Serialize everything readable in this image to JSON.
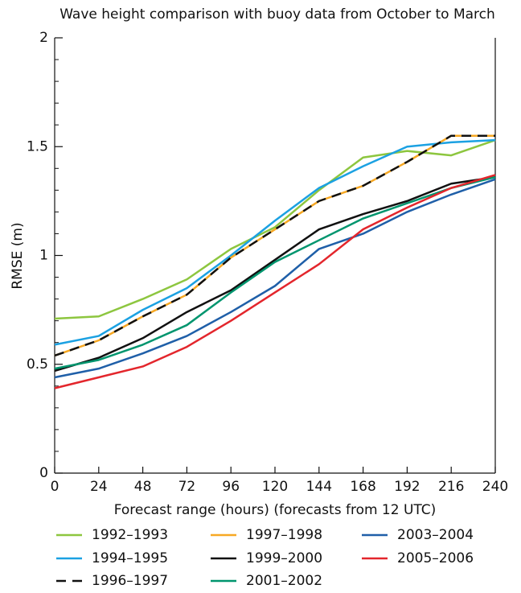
{
  "chart_data": {
    "type": "line",
    "title": "Wave height comparison with buoy data from October to March",
    "x_label": "Forecast range (hours) (forecasts from 12 UTC)",
    "y_label": "RMSE (m)",
    "x": [
      0,
      24,
      48,
      72,
      96,
      120,
      144,
      168,
      192,
      216,
      240
    ],
    "xlim": [
      0,
      240
    ],
    "xticks": [
      0,
      24,
      48,
      72,
      96,
      120,
      144,
      168,
      192,
      216,
      240
    ],
    "ylim": [
      0,
      2
    ],
    "yticks": [
      0,
      0.5,
      1,
      1.5,
      2
    ],
    "yminorticks": [
      0.1,
      0.2,
      0.3,
      0.4,
      0.6,
      0.7,
      0.8,
      0.9,
      1.1,
      1.2,
      1.3,
      1.4,
      1.6,
      1.7,
      1.8,
      1.9
    ],
    "grid": false,
    "legend": "bottom",
    "series": [
      {
        "name": "1992–1993",
        "color": "#8dc63f",
        "values": [
          0.71,
          0.72,
          0.8,
          0.89,
          1.03,
          1.13,
          1.3,
          1.45,
          1.48,
          1.46,
          1.53
        ]
      },
      {
        "name": "1994–1995",
        "color": "#1ba1e2",
        "values": [
          0.59,
          0.63,
          0.75,
          0.85,
          1.0,
          1.16,
          1.31,
          1.41,
          1.5,
          1.52,
          1.53
        ]
      },
      {
        "name": "1996–1997",
        "color": "#111111",
        "dashed": true,
        "values": [
          0.54,
          0.61,
          0.72,
          0.82,
          0.99,
          1.12,
          1.25,
          1.32,
          1.43,
          1.55,
          1.55
        ]
      },
      {
        "name": "1997–1998",
        "color": "#f7a823",
        "values": [
          0.54,
          0.61,
          0.72,
          0.82,
          0.99,
          1.12,
          1.25,
          1.32,
          1.43,
          1.55,
          1.55
        ]
      },
      {
        "name": "1999–2000",
        "color": "#111111",
        "values": [
          0.47,
          0.53,
          0.62,
          0.74,
          0.84,
          0.98,
          1.12,
          1.19,
          1.25,
          1.33,
          1.36
        ]
      },
      {
        "name": "2001–2002",
        "color": "#00956e",
        "values": [
          0.48,
          0.52,
          0.59,
          0.68,
          0.83,
          0.97,
          1.07,
          1.17,
          1.24,
          1.31,
          1.36
        ]
      },
      {
        "name": "2003–2004",
        "color": "#1f5fa8",
        "values": [
          0.44,
          0.48,
          0.55,
          0.63,
          0.74,
          0.86,
          1.03,
          1.1,
          1.2,
          1.28,
          1.35
        ]
      },
      {
        "name": "2005–2006",
        "color": "#e3262c",
        "values": [
          0.39,
          0.44,
          0.49,
          0.58,
          0.7,
          0.83,
          0.96,
          1.12,
          1.22,
          1.31,
          1.37
        ]
      }
    ]
  }
}
